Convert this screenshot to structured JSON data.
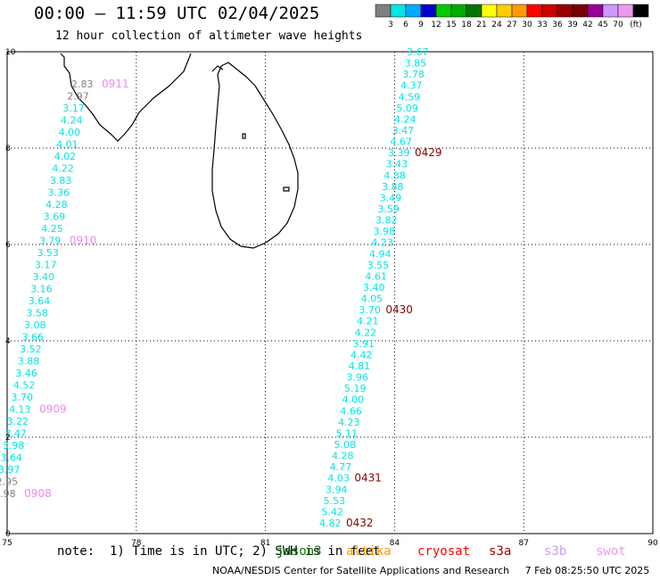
{
  "title": "00:00 – 11:59 UTC 02/04/2025",
  "subtitle": "12 hour collection of altimeter wave heights",
  "colorbar": {
    "colors": [
      "#808080",
      "#00e5e5",
      "#00aaff",
      "#0000cc",
      "#00cc00",
      "#00aa00",
      "#007700",
      "#ffff00",
      "#ffcc00",
      "#ff9900",
      "#ff0000",
      "#cc0000",
      "#990000",
      "#770000",
      "#990099",
      "#cc99ff",
      "#ee99ee",
      "#000000"
    ],
    "labels": [
      "3",
      "6",
      "9",
      "12",
      "15",
      "18",
      "21",
      "24",
      "27",
      "30",
      "33",
      "36",
      "39",
      "42",
      "45",
      "70"
    ],
    "unit": "(ft)"
  },
  "axes": {
    "x_ticks": [
      "75",
      "78",
      "81",
      "84",
      "87",
      "90"
    ],
    "y_ticks": [
      "0",
      "2",
      "4",
      "6",
      "8",
      "10"
    ],
    "lon_range": [
      75,
      90
    ],
    "lat_range": [
      0,
      10
    ]
  },
  "left_track": {
    "color": "#00e5e5",
    "grey_color": "#808080",
    "points": [
      {
        "lat": 9.33,
        "lon": 76.7,
        "v": "2.83",
        "grey": true
      },
      {
        "lat": 9.08,
        "lon": 76.6,
        "v": "2.97",
        "grey": true
      },
      {
        "lat": 8.83,
        "lon": 76.5,
        "v": "3.17"
      },
      {
        "lat": 8.58,
        "lon": 76.45,
        "v": "4.24"
      },
      {
        "lat": 8.33,
        "lon": 76.4,
        "v": "4.00"
      },
      {
        "lat": 8.08,
        "lon": 76.35,
        "v": "4.01"
      },
      {
        "lat": 7.83,
        "lon": 76.3,
        "v": "4.02"
      },
      {
        "lat": 7.58,
        "lon": 76.25,
        "v": "4.22"
      },
      {
        "lat": 7.33,
        "lon": 76.2,
        "v": "3.83"
      },
      {
        "lat": 7.08,
        "lon": 76.15,
        "v": "3.36"
      },
      {
        "lat": 6.83,
        "lon": 76.1,
        "v": "4.28"
      },
      {
        "lat": 6.58,
        "lon": 76.05,
        "v": "3.69"
      },
      {
        "lat": 6.33,
        "lon": 76.0,
        "v": "4.25"
      },
      {
        "lat": 6.08,
        "lon": 75.95,
        "v": "3.79"
      },
      {
        "lat": 5.83,
        "lon": 75.9,
        "v": "3.53"
      },
      {
        "lat": 5.58,
        "lon": 75.85,
        "v": "3.17"
      },
      {
        "lat": 5.33,
        "lon": 75.8,
        "v": "3.40"
      },
      {
        "lat": 5.08,
        "lon": 75.75,
        "v": "3.16"
      },
      {
        "lat": 4.83,
        "lon": 75.7,
        "v": "3.64"
      },
      {
        "lat": 4.58,
        "lon": 75.65,
        "v": "3.58"
      },
      {
        "lat": 4.33,
        "lon": 75.6,
        "v": "3.08"
      },
      {
        "lat": 4.08,
        "lon": 75.55,
        "v": "3.66"
      },
      {
        "lat": 3.83,
        "lon": 75.5,
        "v": "3.52"
      },
      {
        "lat": 3.58,
        "lon": 75.45,
        "v": "3.88"
      },
      {
        "lat": 3.33,
        "lon": 75.4,
        "v": "3.46"
      },
      {
        "lat": 3.08,
        "lon": 75.35,
        "v": "4.52"
      },
      {
        "lat": 2.83,
        "lon": 75.3,
        "v": "3.70"
      },
      {
        "lat": 2.58,
        "lon": 75.25,
        "v": "4.13"
      },
      {
        "lat": 2.33,
        "lon": 75.2,
        "v": "3.22"
      },
      {
        "lat": 2.08,
        "lon": 75.15,
        "v": "3.47"
      },
      {
        "lat": 1.83,
        "lon": 75.1,
        "v": "3.98"
      },
      {
        "lat": 1.58,
        "lon": 75.05,
        "v": "3.64"
      },
      {
        "lat": 1.33,
        "lon": 75.0,
        "v": "3.97"
      },
      {
        "lat": 1.08,
        "lon": 74.95,
        "v": "2.95",
        "grey": true
      },
      {
        "lat": 0.83,
        "lon": 74.9,
        "v": "2.98",
        "grey": true
      }
    ],
    "time_labels": [
      {
        "v": "0911",
        "at": 0
      },
      {
        "v": "0910",
        "at": 13
      },
      {
        "v": "0909",
        "at": 27
      },
      {
        "v": "0908",
        "at": 34
      }
    ],
    "time_color": "#ee88ee"
  },
  "right_track": {
    "color": "#00e5e5",
    "points": [
      {
        "v": "3.67"
      },
      {
        "v": "3.85"
      },
      {
        "v": "3.78"
      },
      {
        "v": "4.37"
      },
      {
        "v": "4.59"
      },
      {
        "v": "5.09"
      },
      {
        "v": "4.24"
      },
      {
        "v": "3.47"
      },
      {
        "v": "4.67"
      },
      {
        "v": "3.39"
      },
      {
        "v": "3.43"
      },
      {
        "v": "4.38"
      },
      {
        "v": "3.88"
      },
      {
        "v": "3.49"
      },
      {
        "v": "3.59"
      },
      {
        "v": "3.82"
      },
      {
        "v": "3.98"
      },
      {
        "v": "4.23"
      },
      {
        "v": "4.94"
      },
      {
        "v": "3.55"
      },
      {
        "v": "4.61"
      },
      {
        "v": "3.40"
      },
      {
        "v": "4.05"
      },
      {
        "v": "3.70"
      },
      {
        "v": "4.21"
      },
      {
        "v": "4.22"
      },
      {
        "v": "3.91"
      },
      {
        "v": "4.42"
      },
      {
        "v": "4.81"
      },
      {
        "v": "3.96"
      },
      {
        "v": "5.19"
      },
      {
        "v": "4.00"
      },
      {
        "v": "4.66"
      },
      {
        "v": "4.23"
      },
      {
        "v": "5.11"
      },
      {
        "v": "5.08"
      },
      {
        "v": "4.28"
      },
      {
        "v": "4.77"
      },
      {
        "v": "4.03"
      },
      {
        "v": "3.94"
      },
      {
        "v": "5.53"
      },
      {
        "v": "5.42"
      },
      {
        "v": "4.82"
      }
    ],
    "time_labels": [
      {
        "v": "0429",
        "at": 9
      },
      {
        "v": "0430",
        "at": 23
      },
      {
        "v": "0431",
        "at": 38
      },
      {
        "v": "0432",
        "at": 42
      }
    ],
    "time_color": "#880000"
  },
  "note": "note:  1) Time is in UTC; 2) SWH is in feet",
  "satellites": [
    {
      "name": "jason3",
      "color": "#007700"
    },
    {
      "name": "altika",
      "color": "#ff9900"
    },
    {
      "name": "cryosat",
      "color": "#ff0000"
    },
    {
      "name": "s3a",
      "color": "#990000"
    },
    {
      "name": "s3b",
      "color": "#cc99ff"
    },
    {
      "name": "swot",
      "color": "#ee99ee"
    }
  ],
  "footer": "NOAA/NESDIS Center for Satellite Applications and Research     7 Feb 08:25:50 UTC 2025"
}
